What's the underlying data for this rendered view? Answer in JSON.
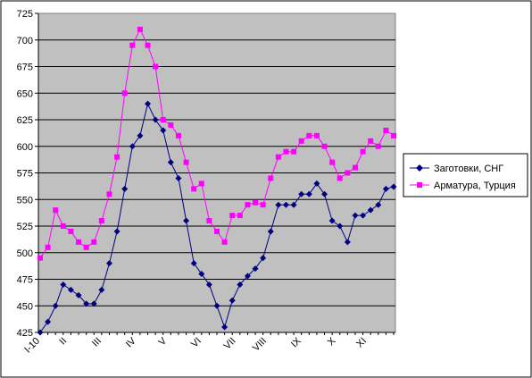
{
  "chart_data": {
    "type": "line",
    "title": "",
    "xlabel": "",
    "ylabel": "",
    "ylim": [
      425,
      725
    ],
    "yticks": [
      425,
      450,
      475,
      500,
      525,
      550,
      575,
      600,
      625,
      650,
      675,
      700,
      725
    ],
    "x_tick_labels": [
      {
        "label": "I-10",
        "index": 0
      },
      {
        "label": "II",
        "index": 3.5
      },
      {
        "label": "III",
        "index": 8
      },
      {
        "label": "IV",
        "index": 12.5
      },
      {
        "label": "V",
        "index": 16.5
      },
      {
        "label": "VI",
        "index": 21
      },
      {
        "label": "VII",
        "index": 25.5
      },
      {
        "label": "VIII",
        "index": 29.5
      },
      {
        "label": "IX",
        "index": 34
      },
      {
        "label": "X",
        "index": 38.5
      },
      {
        "label": "XI",
        "index": 42.5
      }
    ],
    "grid": "horizontal",
    "legend_position": "right",
    "plot_background": "#c0c0c0",
    "series": [
      {
        "name": "Заготовки, СНГ",
        "color": "#000080",
        "marker": "diamond",
        "values": [
          425,
          435,
          450,
          470,
          465,
          460,
          452,
          452,
          465,
          490,
          520,
          560,
          600,
          610,
          640,
          625,
          615,
          585,
          570,
          530,
          490,
          480,
          470,
          450,
          430,
          455,
          470,
          478,
          485,
          495,
          520,
          545,
          545,
          545,
          555,
          555,
          565,
          555,
          530,
          525,
          510,
          535,
          535,
          540,
          545,
          560,
          562
        ]
      },
      {
        "name": "Арматура, Турция",
        "color": "#ff00ff",
        "marker": "square",
        "values": [
          495,
          505,
          540,
          525,
          520,
          510,
          505,
          510,
          530,
          555,
          590,
          650,
          695,
          710,
          695,
          675,
          625,
          620,
          610,
          585,
          560,
          565,
          530,
          520,
          510,
          535,
          535,
          545,
          547,
          545,
          570,
          590,
          595,
          595,
          605,
          610,
          610,
          600,
          585,
          570,
          575,
          580,
          595,
          605,
          600,
          615,
          610
        ]
      }
    ]
  }
}
